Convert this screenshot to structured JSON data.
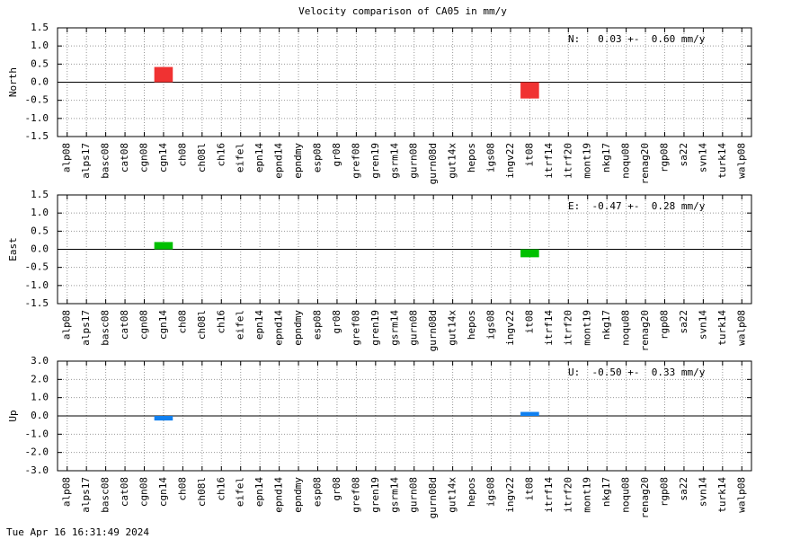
{
  "title": "Velocity comparison of CA05 in mm/y",
  "footer": "Tue Apr 16 16:31:49 2024",
  "chart_data": [
    {
      "type": "bar",
      "ylabel": "North",
      "annotation": "N:   0.03 +-  0.60 mm/y",
      "color": "#f03232",
      "categories": [
        "alp08",
        "alps17",
        "basc08",
        "cat08",
        "cgn08",
        "cgn14",
        "ch08",
        "ch08l",
        "ch16",
        "eifel",
        "epn14",
        "epnd14",
        "epndmy",
        "esp08",
        "gr08",
        "gref08",
        "gren19",
        "gsrm14",
        "gurn08",
        "gurn08d",
        "gut14x",
        "hepos",
        "igs08",
        "ingv22",
        "it08",
        "itrf14",
        "itrf20",
        "mont19",
        "nkg17",
        "noqu08",
        "renag20",
        "rgp08",
        "sa22",
        "svn14",
        "turk14",
        "walp08"
      ],
      "values": [
        null,
        null,
        null,
        null,
        null,
        0.42,
        null,
        null,
        null,
        null,
        null,
        null,
        null,
        null,
        null,
        null,
        null,
        null,
        null,
        null,
        null,
        null,
        null,
        null,
        -0.45,
        null,
        null,
        null,
        null,
        null,
        null,
        null,
        null,
        null,
        null,
        null
      ],
      "ylim": [
        -1.5,
        1.5
      ],
      "yticks": [
        -1.5,
        {
          "value": -1,
          "label": "-1.0"
        },
        -0.5,
        {
          "value": 0,
          "label": "0.0"
        },
        0.5,
        {
          "value": 1,
          "label": "1.0"
        },
        1.5
      ],
      "grid": true
    },
    {
      "type": "bar",
      "ylabel": "East",
      "annotation": "E:  -0.47 +-  0.28 mm/y",
      "color": "#00c000",
      "categories": [
        "alp08",
        "alps17",
        "basc08",
        "cat08",
        "cgn08",
        "cgn14",
        "ch08",
        "ch08l",
        "ch16",
        "eifel",
        "epn14",
        "epnd14",
        "epndmy",
        "esp08",
        "gr08",
        "gref08",
        "gren19",
        "gsrm14",
        "gurn08",
        "gurn08d",
        "gut14x",
        "hepos",
        "igs08",
        "ingv22",
        "it08",
        "itrf14",
        "itrf20",
        "mont19",
        "nkg17",
        "noqu08",
        "renag20",
        "rgp08",
        "sa22",
        "svn14",
        "turk14",
        "walp08"
      ],
      "values": [
        null,
        null,
        null,
        null,
        null,
        0.2,
        null,
        null,
        null,
        null,
        null,
        null,
        null,
        null,
        null,
        null,
        null,
        null,
        null,
        null,
        null,
        null,
        null,
        null,
        -0.22,
        null,
        null,
        null,
        null,
        null,
        null,
        null,
        null,
        null,
        null,
        null
      ],
      "ylim": [
        -1.5,
        1.5
      ],
      "yticks": [
        -1.5,
        {
          "value": -1,
          "label": "-1.0"
        },
        -0.5,
        {
          "value": 0,
          "label": "0.0"
        },
        0.5,
        {
          "value": 1,
          "label": "1.0"
        },
        1.5
      ],
      "grid": true
    },
    {
      "type": "bar",
      "ylabel": "Up",
      "annotation": "U:  -0.50 +-  0.33 mm/y",
      "color": "#1080f0",
      "categories": [
        "alp08",
        "alps17",
        "basc08",
        "cat08",
        "cgn08",
        "cgn14",
        "ch08",
        "ch08l",
        "ch16",
        "eifel",
        "epn14",
        "epnd14",
        "epndmy",
        "esp08",
        "gr08",
        "gref08",
        "gren19",
        "gsrm14",
        "gurn08",
        "gurn08d",
        "gut14x",
        "hepos",
        "igs08",
        "ingv22",
        "it08",
        "itrf14",
        "itrf20",
        "mont19",
        "nkg17",
        "noqu08",
        "renag20",
        "rgp08",
        "sa22",
        "svn14",
        "turk14",
        "walp08"
      ],
      "values": [
        null,
        null,
        null,
        null,
        null,
        -0.25,
        null,
        null,
        null,
        null,
        null,
        null,
        null,
        null,
        null,
        null,
        null,
        null,
        null,
        null,
        null,
        null,
        null,
        null,
        0.22,
        null,
        null,
        null,
        null,
        null,
        null,
        null,
        null,
        null,
        null,
        null
      ],
      "ylim": [
        -3,
        3
      ],
      "yticks": [
        {
          "value": -3,
          "label": "-3.0"
        },
        {
          "value": -2,
          "label": "-2.0"
        },
        {
          "value": -1,
          "label": "-1.0"
        },
        {
          "value": 0,
          "label": "0.0"
        },
        {
          "value": 1,
          "label": "1.0"
        },
        {
          "value": 2,
          "label": "2.0"
        },
        {
          "value": 3,
          "label": "3.0"
        }
      ],
      "grid": true
    }
  ]
}
